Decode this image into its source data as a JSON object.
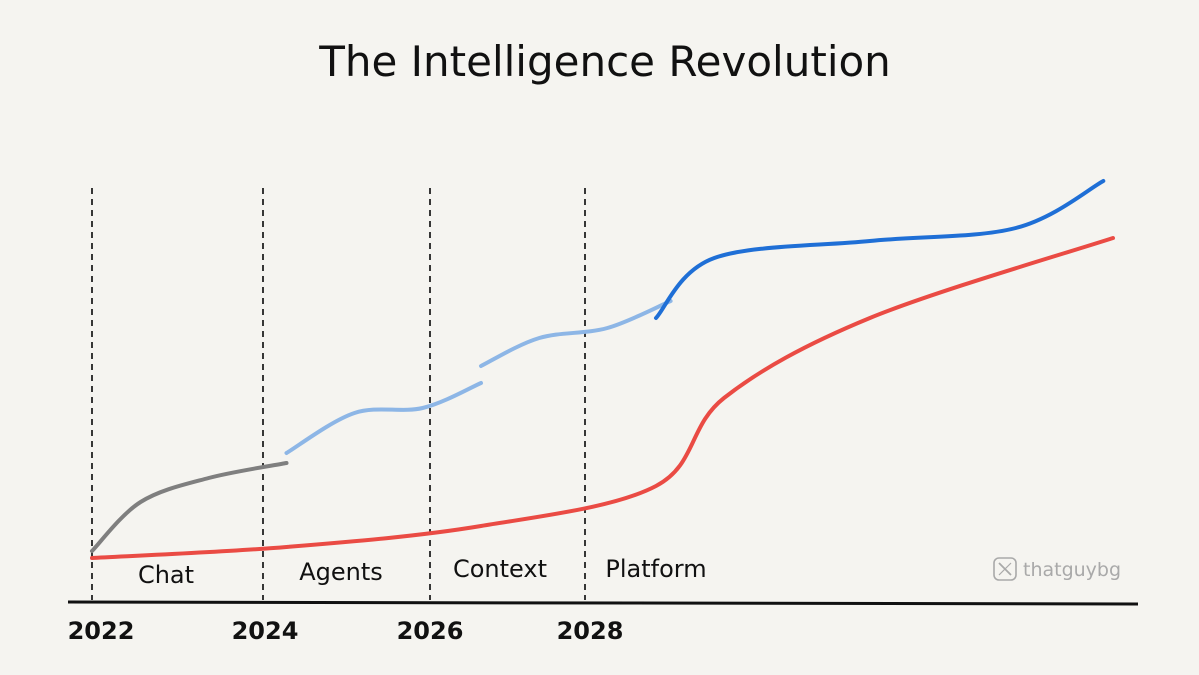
{
  "chart_data": {
    "type": "line",
    "title": "The Intelligence Revolution",
    "xlabel": "",
    "ylabel": "",
    "x_ticks": [
      "2022",
      "2024",
      "2026",
      "2028"
    ],
    "eras": [
      "Chat",
      "Agents",
      "Context",
      "Platform"
    ],
    "grid": false,
    "legend": "none",
    "series": [
      {
        "color": "#ea4b44",
        "points": [
          [
            2022,
            0.05
          ],
          [
            2024,
            0.16
          ],
          [
            2026,
            0.37
          ],
          [
            2027.8,
            0.77
          ],
          [
            2028.5,
            1.65
          ],
          [
            2030,
            2.45
          ],
          [
            2032.5,
            3.25
          ]
        ]
      },
      {
        "color": "#7f7f7f",
        "segment": "Chat",
        "points": [
          [
            2022,
            0.12
          ],
          [
            2022.5,
            0.61
          ],
          [
            2023.2,
            0.85
          ],
          [
            2024,
            1.0
          ]
        ]
      },
      {
        "color": "#8db6e6",
        "segment": "Agents",
        "points": [
          [
            2024,
            1.1
          ],
          [
            2024.7,
            1.5
          ],
          [
            2025.4,
            1.55
          ],
          [
            2026,
            1.8
          ]
        ]
      },
      {
        "color": "#8db6e6",
        "segment": "Context",
        "points": [
          [
            2026,
            1.97
          ],
          [
            2026.6,
            2.25
          ],
          [
            2027.3,
            2.35
          ],
          [
            2027.95,
            2.62
          ]
        ]
      },
      {
        "color": "#1f6fd6",
        "segment": "Platform",
        "points": [
          [
            2027.8,
            2.45
          ],
          [
            2028.4,
            3.05
          ],
          [
            2030,
            3.22
          ],
          [
            2031.5,
            3.35
          ],
          [
            2032.4,
            3.82
          ]
        ]
      }
    ]
  },
  "watermark": {
    "icon": "x-logo-icon",
    "handle": "thatguybg"
  }
}
